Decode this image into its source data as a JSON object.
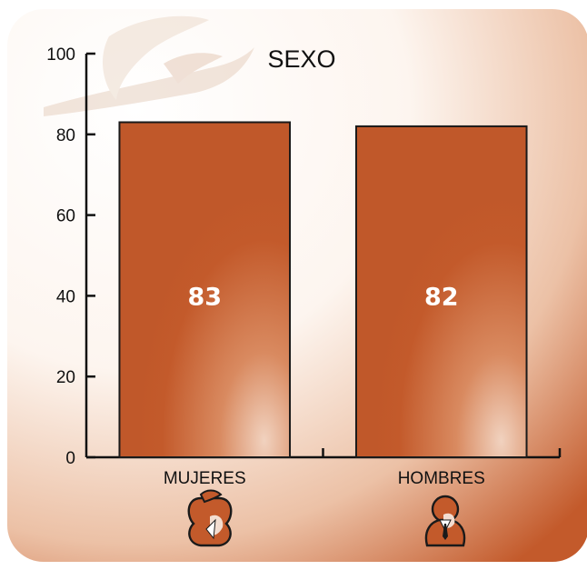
{
  "chart_data": {
    "type": "bar",
    "title": "SEXO",
    "categories": [
      "MUJERES",
      "HOMBRES"
    ],
    "values": [
      83,
      82
    ],
    "data_labels": [
      "83",
      "82"
    ],
    "ylim": [
      0,
      100
    ],
    "yticks": [
      0,
      20,
      40,
      60,
      80,
      100
    ],
    "xlabel": "",
    "ylabel": "",
    "grid": false,
    "legend": "none",
    "category_icons": [
      "woman-icon",
      "man-icon"
    ]
  },
  "colors": {
    "bar": "#c35a2b",
    "bar_highlight": "#e4ad90",
    "background_edge": "#c8683a",
    "background_light": "#fbefe8",
    "watermark": "#e8d5c8"
  }
}
